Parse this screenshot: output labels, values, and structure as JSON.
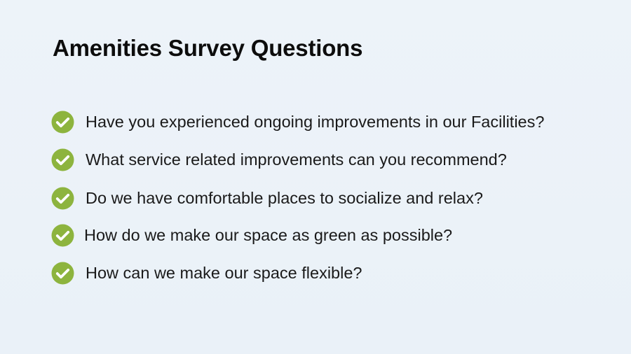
{
  "slide": {
    "title": "Amenities Survey Questions",
    "check_color": "#8db43e",
    "items": [
      {
        "icon": "check-circle-icon",
        "text": "Have you experienced ongoing improvements in our Facilities?"
      },
      {
        "icon": "check-circle-icon",
        "text": "What service related improvements can you recommend?"
      },
      {
        "icon": "check-circle-icon",
        "text": "Do we have comfortable places to socialize and relax?"
      },
      {
        "icon": "check-circle-icon",
        "text": "How do we make our space as green as possible?"
      },
      {
        "icon": "check-circle-icon",
        "text": "How can we make our space flexible?"
      }
    ]
  }
}
